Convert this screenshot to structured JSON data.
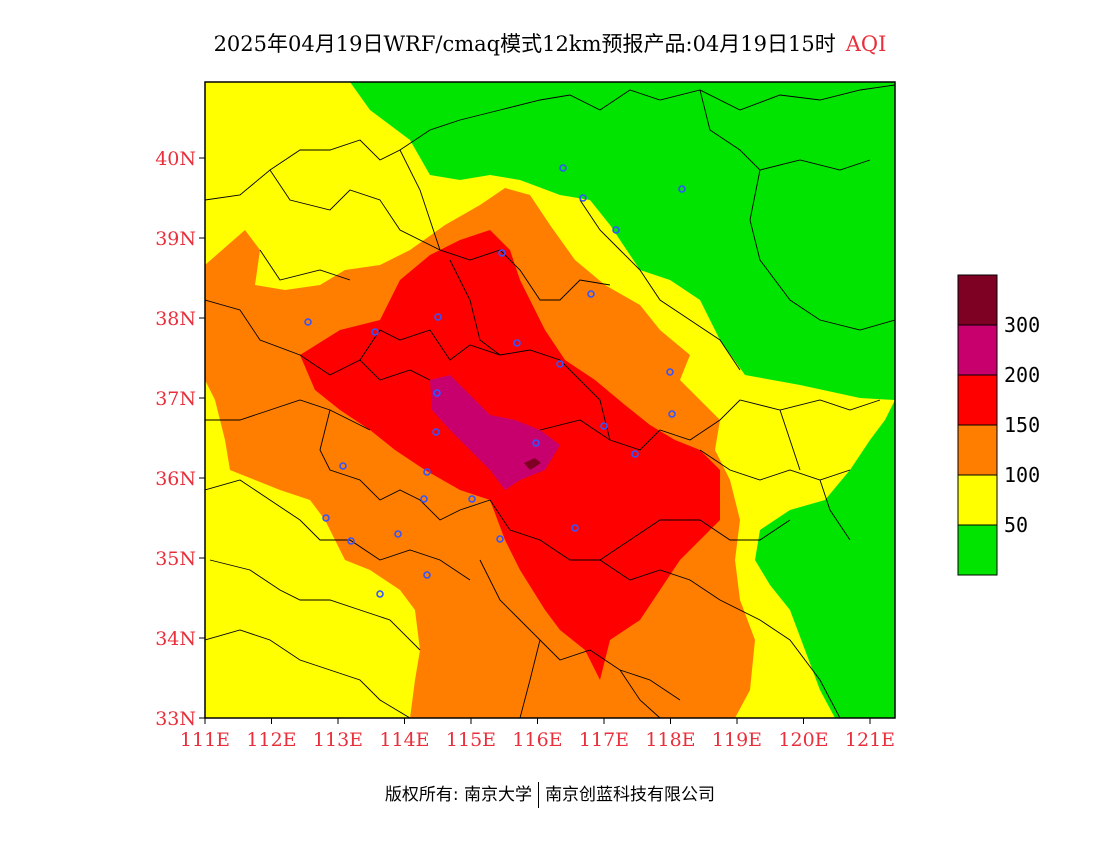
{
  "title": {
    "main": "2025年04月19日WRF/cmaq模式12km预报产品:04月19日15时",
    "variable": "AQI"
  },
  "map": {
    "lat_ticks": [
      "33N",
      "34N",
      "35N",
      "36N",
      "37N",
      "38N",
      "39N",
      "40N"
    ],
    "lon_ticks": [
      "111E",
      "112E",
      "113E",
      "114E",
      "115E",
      "116E",
      "117E",
      "118E",
      "119E",
      "120E",
      "121E"
    ],
    "label_color": "#e8303c"
  },
  "legend": {
    "labels": [
      "50",
      "100",
      "150",
      "200",
      "300"
    ],
    "colors": [
      "#00e400",
      "#ffff00",
      "#ff7e00",
      "#ff0000",
      "#c8006e",
      "#7e0023"
    ]
  },
  "copyright": {
    "prefix": "版权所有: 南京大学",
    "company": "南京创蓝科技有限公司"
  }
}
